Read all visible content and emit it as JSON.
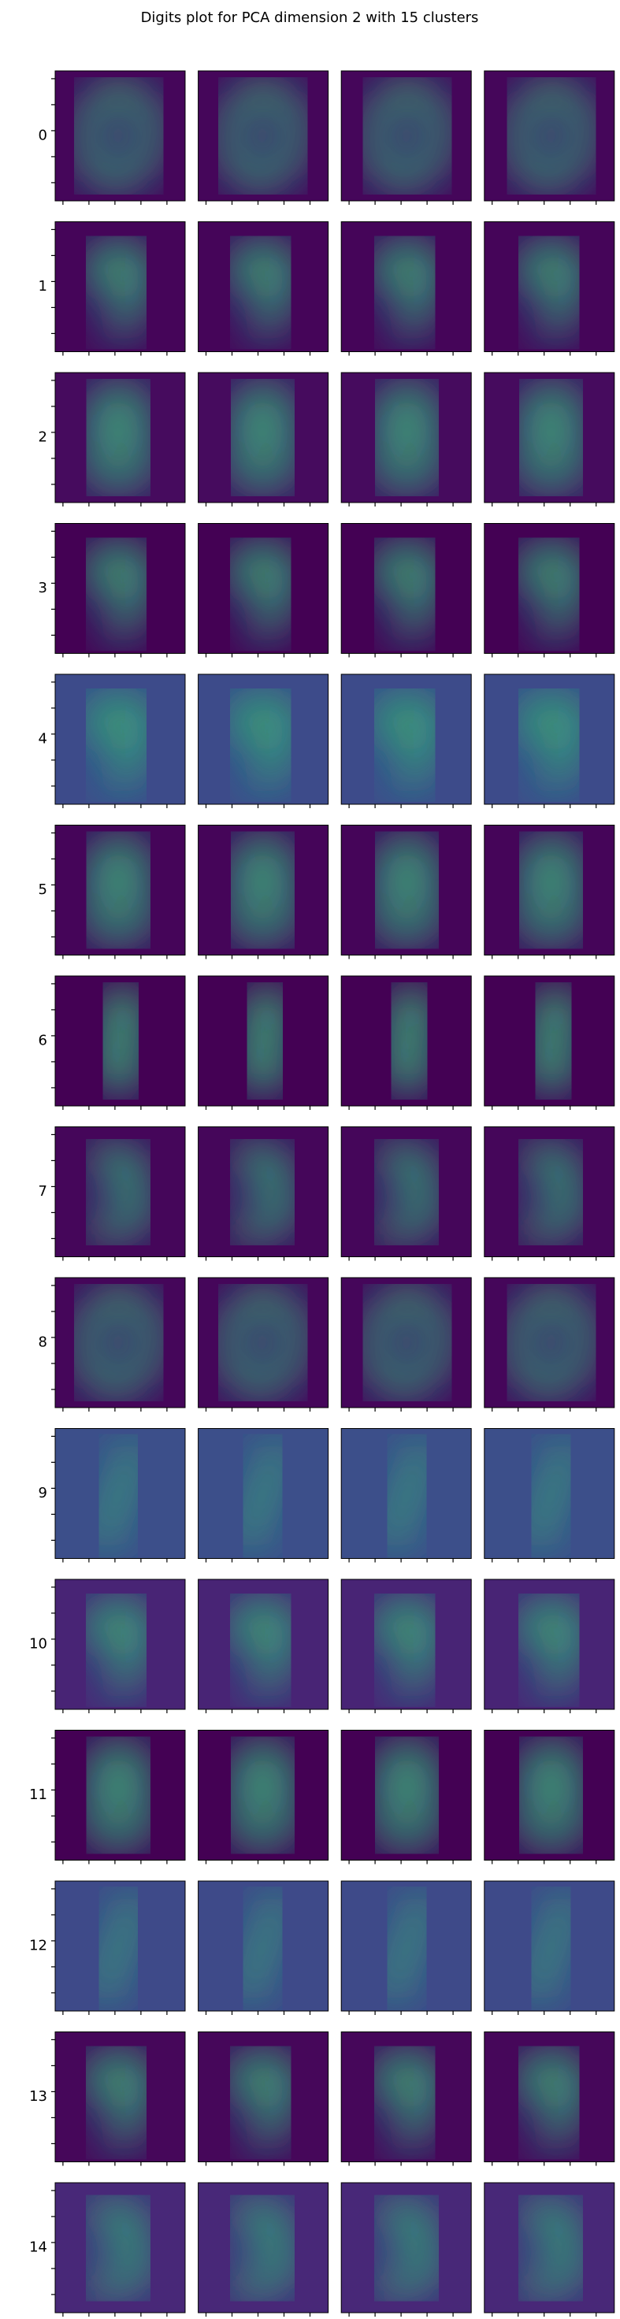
{
  "title": "Digits plot for PCA dimension 2 with 15 clusters",
  "row_labels": [
    "0",
    "1",
    "2",
    "3",
    "4",
    "5",
    "6",
    "7",
    "8",
    "9",
    "10",
    "11",
    "12",
    "13",
    "14"
  ]
}
